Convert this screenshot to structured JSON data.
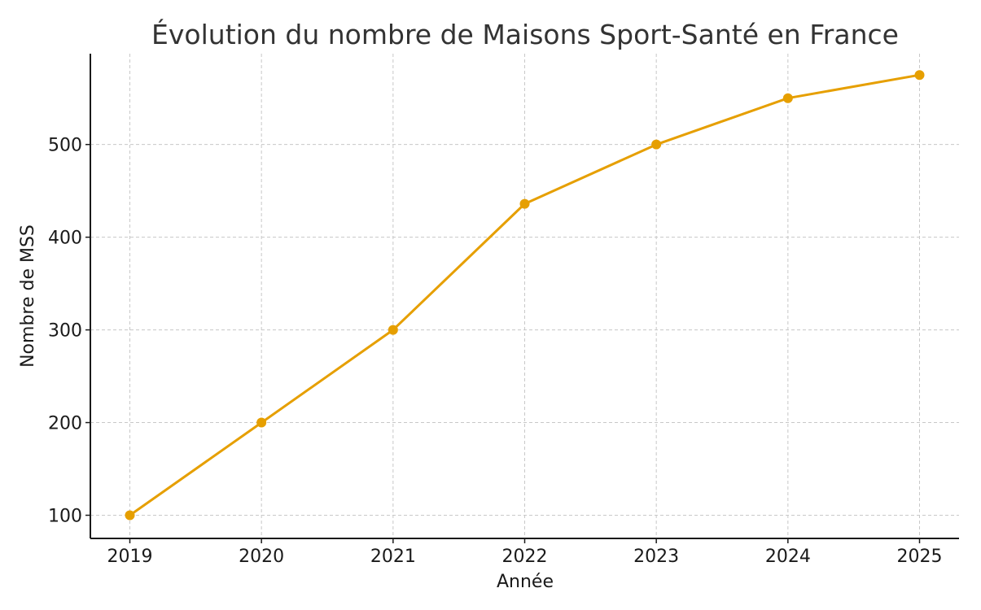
{
  "chart_data": {
    "type": "line",
    "title": "Évolution du nombre de Maisons Sport-Santé en France",
    "xlabel": "Année",
    "ylabel": "Nombre de MSS",
    "x": [
      2019,
      2020,
      2021,
      2022,
      2023,
      2024,
      2025
    ],
    "series": [
      {
        "values": [
          100,
          200,
          300,
          436,
          500,
          550,
          575
        ],
        "color": "#E69F00"
      }
    ],
    "xlim": [
      2018.7,
      2025.3
    ],
    "ylim": [
      75,
      598
    ],
    "yticks": [
      100,
      200,
      300,
      400,
      500
    ],
    "grid": true,
    "line_style": "solid",
    "marker": "circle"
  }
}
